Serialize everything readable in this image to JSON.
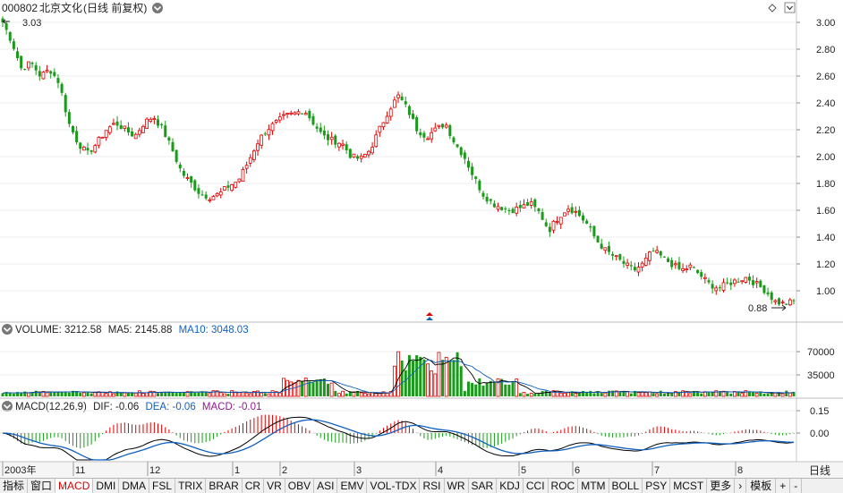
{
  "header": {
    "code": "000802",
    "name": "北京文化",
    "mode": "(日线 前复权)"
  },
  "price_panel": {
    "high_label": "3.03",
    "low_label": "0.88",
    "yaxis": [
      "3.00",
      "2.80",
      "2.60",
      "2.40",
      "2.20",
      "2.00",
      "1.80",
      "1.60",
      "1.40",
      "1.20",
      "1.00"
    ]
  },
  "volume_panel": {
    "legend": {
      "title": "VOLUME:",
      "value": "3212.58",
      "ma5_label": "MA5:",
      "ma5": "2145.88",
      "ma10_label": "MA10:",
      "ma10": "3048.03"
    },
    "yaxis": [
      "70000",
      "35000"
    ]
  },
  "macd_panel": {
    "legend": {
      "title": "MACD(12,26,9)",
      "dif_label": "DIF:",
      "dif": "-0.06",
      "dea_label": "DEA:",
      "dea": "-0.06",
      "macd_label": "MACD:",
      "macd": "-0.01"
    },
    "yaxis": [
      "0.15",
      "0.00"
    ]
  },
  "date_axis": [
    "2003年",
    "11",
    "12",
    "1",
    "2",
    "3",
    "4",
    "5",
    "6",
    "7",
    "8"
  ],
  "timeframe": "日线",
  "colors": {
    "up": "#e00000",
    "down": "#1a9a1a",
    "dif": "#000000",
    "dea": "#1060c0",
    "ma10": "#1060c0",
    "macd_text": "#8c1a8c"
  },
  "chart_data": {
    "type": "candlestick",
    "price_range": [
      0.88,
      3.03
    ],
    "volume_last": 3212.58,
    "ma5_last": 2145.88,
    "ma10_last": 3048.03,
    "dif_last": -0.06,
    "dea_last": -0.06,
    "macd_last": -0.01,
    "path": [
      3.0,
      2.85,
      2.65,
      2.7,
      2.6,
      2.65,
      2.55,
      2.25,
      2.1,
      2.02,
      2.1,
      2.2,
      2.25,
      2.2,
      2.15,
      2.25,
      2.3,
      2.2,
      2.05,
      1.88,
      1.8,
      1.72,
      1.7,
      1.72,
      1.78,
      1.82,
      1.95,
      2.1,
      2.2,
      2.25,
      2.3,
      2.32,
      2.35,
      2.25,
      2.15,
      2.12,
      2.1,
      2.0,
      1.98,
      2.05,
      2.2,
      2.35,
      2.45,
      2.35,
      2.2,
      2.15,
      2.2,
      2.25,
      2.1,
      2.0,
      1.85,
      1.72,
      1.65,
      1.62,
      1.6,
      1.62,
      1.65,
      1.58,
      1.45,
      1.55,
      1.62,
      1.58,
      1.5,
      1.38,
      1.3,
      1.25,
      1.2,
      1.15,
      1.2,
      1.3,
      1.25,
      1.2,
      1.15,
      1.18,
      1.12,
      1.05,
      1.02,
      1.05,
      1.08,
      1.1,
      1.05,
      1.0,
      0.92,
      0.9,
      0.92
    ]
  },
  "tabs": [
    "指标",
    "窗口",
    "MACD",
    "DMI",
    "DMA",
    "FSL",
    "TRIX",
    "BRAR",
    "CR",
    "VR",
    "OBV",
    "ASI",
    "EMV",
    "VOL-TDX",
    "RSI",
    "WR",
    "SAR",
    "KDJ",
    "CCI",
    "ROC",
    "MTM",
    "BOLL",
    "PSY",
    "MCST",
    "更多"
  ],
  "tab_tools": [
    "›",
    "模板",
    "+",
    "-"
  ]
}
